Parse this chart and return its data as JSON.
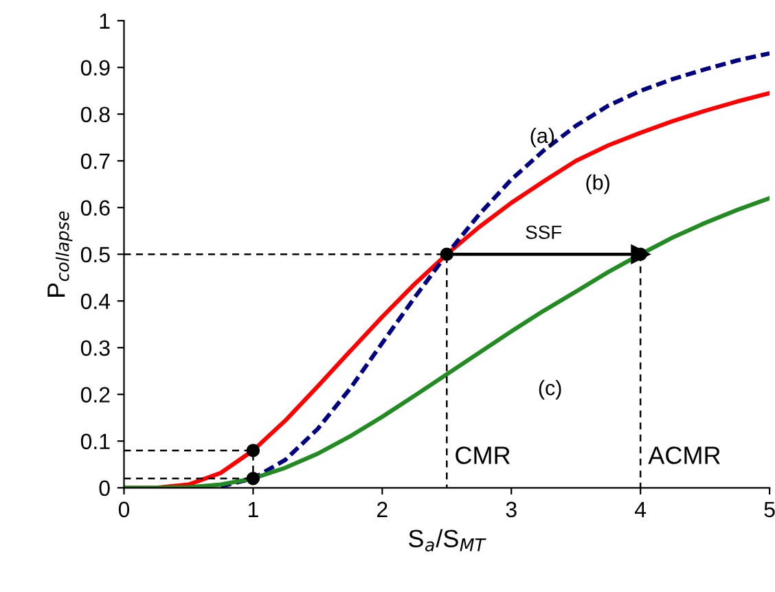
{
  "chart_data": {
    "type": "line",
    "xlabel": "S$_{a}$/S$_{MT}$",
    "ylabel": "P$_{collapse}$",
    "xlim": [
      0,
      5
    ],
    "ylim": [
      0,
      1
    ],
    "xticks": [
      0,
      1,
      2,
      3,
      4,
      5
    ],
    "yticks": [
      0,
      0.1,
      0.2,
      0.3,
      0.4,
      0.5,
      0.6,
      0.7,
      0.8,
      0.9,
      1
    ],
    "grid": false,
    "legend": false,
    "series": [
      {
        "type": "line",
        "color": "#ff0000",
        "line_style": "solid",
        "x": [
          0,
          0.25,
          0.5,
          0.75,
          1,
          1.25,
          1.5,
          1.75,
          2,
          2.25,
          2.5,
          2.75,
          3,
          3.25,
          3.5,
          3.75,
          4,
          4.25,
          4.5,
          4.75,
          5
        ],
        "values": [
          0,
          0,
          0.007,
          0.032,
          0.08,
          0.144,
          0.217,
          0.292,
          0.366,
          0.436,
          0.5,
          0.558,
          0.61,
          0.656,
          0.7,
          0.733,
          0.76,
          0.785,
          0.807,
          0.827,
          0.845
        ]
      },
      {
        "type": "line",
        "color": "#000080",
        "line_style": "dashed",
        "x": [
          0.75,
          1,
          1.25,
          1.5,
          1.75,
          2,
          2.25,
          2.5,
          2.75,
          3,
          3.25,
          3.5,
          3.75,
          4,
          4.25,
          4.5,
          4.75,
          5
        ],
        "values": [
          0.003,
          0.02,
          0.06,
          0.126,
          0.212,
          0.31,
          0.407,
          0.5,
          0.585,
          0.66,
          0.722,
          0.775,
          0.818,
          0.85,
          0.875,
          0.896,
          0.915,
          0.93
        ]
      },
      {
        "type": "line",
        "color": "#228b22",
        "line_style": "solid",
        "x": [
          0,
          0.25,
          0.5,
          0.75,
          1,
          1.25,
          1.5,
          1.75,
          2,
          2.25,
          2.5,
          2.75,
          3,
          3.25,
          3.5,
          3.75,
          4,
          4.25,
          4.5,
          4.75,
          5
        ],
        "values": [
          0,
          0,
          0.001,
          0.007,
          0.02,
          0.043,
          0.073,
          0.11,
          0.152,
          0.197,
          0.243,
          0.289,
          0.335,
          0.379,
          0.42,
          0.462,
          0.5,
          0.536,
          0.567,
          0.595,
          0.62
        ]
      },
      {
        "type": "line",
        "color": "#000000",
        "line_style": "dashed",
        "x": [
          0,
          2.5,
          2.5
        ],
        "values": [
          0.5,
          0.5,
          0
        ]
      },
      {
        "type": "line",
        "color": "#000000",
        "line_style": "dashed",
        "x": [
          4,
          4
        ],
        "values": [
          0.5,
          0
        ]
      },
      {
        "type": "line",
        "color": "#000000",
        "line_style": "dashed",
        "x": [
          0,
          1,
          1
        ],
        "values": [
          0.08,
          0.08,
          0
        ]
      },
      {
        "type": "line",
        "color": "#000000",
        "line_style": "dashed",
        "x": [
          0,
          1
        ],
        "values": [
          0.02,
          0.02
        ]
      },
      {
        "type": "line",
        "color": "#000000",
        "line_style": "solid",
        "x": [
          2.5,
          4
        ],
        "values": [
          0.5,
          0.5
        ]
      },
      {
        "type": "scatter",
        "color": "#000000",
        "marker": "circle",
        "x": [
          1,
          1,
          2.5,
          4
        ],
        "values": [
          0.08,
          0.02,
          0.5,
          0.5
        ]
      }
    ],
    "annotations": [
      "(a)",
      "(b)",
      "(c)",
      {
        "text": "SSF",
        "x": 3.25,
        "y": 0.5
      },
      {
        "text": "CMR",
        "x": 2.5,
        "y": 0.065
      },
      {
        "text": "ACMR",
        "x": 4,
        "y": 0.065
      }
    ]
  }
}
